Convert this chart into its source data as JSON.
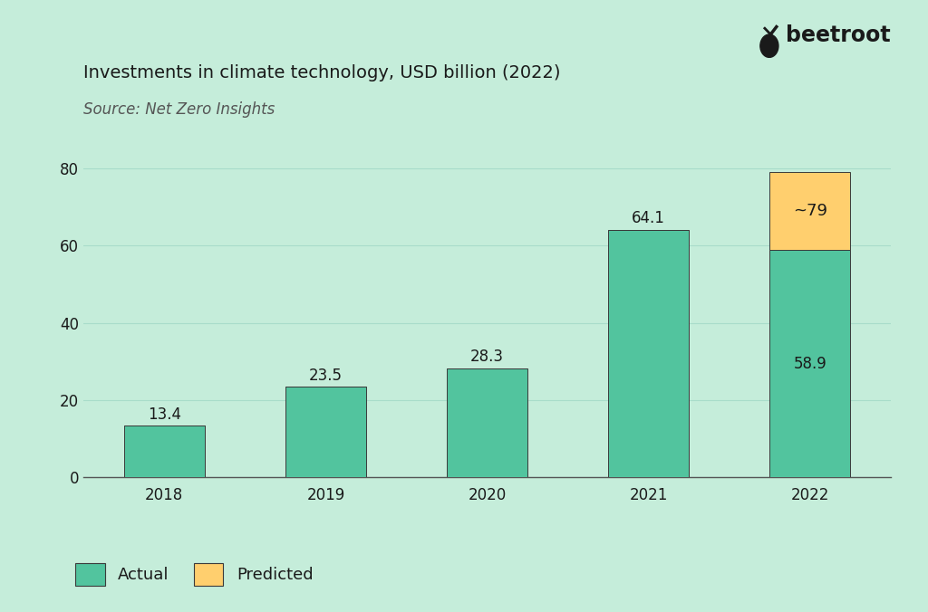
{
  "title": "Investments in climate technology, USD billion (2022)",
  "subtitle": "Source: Net Zero Insights",
  "categories": [
    "2018",
    "2019",
    "2020",
    "2021",
    "2022"
  ],
  "actual_values": [
    13.4,
    23.5,
    28.3,
    64.1,
    58.9
  ],
  "predicted_values": [
    0,
    0,
    0,
    0,
    20.1
  ],
  "bar_labels": [
    "13.4",
    "23.5",
    "28.3",
    "64.1",
    "58.9"
  ],
  "predicted_label": "~79",
  "actual_color": "#52C49E",
  "predicted_color": "#FFCF6E",
  "bar_edge_color": "#3a3a3a",
  "background_color": "#C5EDDA",
  "text_color": "#1a1a1a",
  "grid_color": "#A8DCCA",
  "ylim": [
    0,
    84
  ],
  "yticks": [
    0,
    20,
    40,
    60,
    80
  ],
  "bar_width": 0.5,
  "legend_actual": "Actual",
  "legend_predicted": "Predicted",
  "logo_text": "beetroot",
  "title_fontsize": 14,
  "subtitle_fontsize": 12,
  "label_fontsize": 12,
  "tick_fontsize": 12,
  "legend_fontsize": 13
}
